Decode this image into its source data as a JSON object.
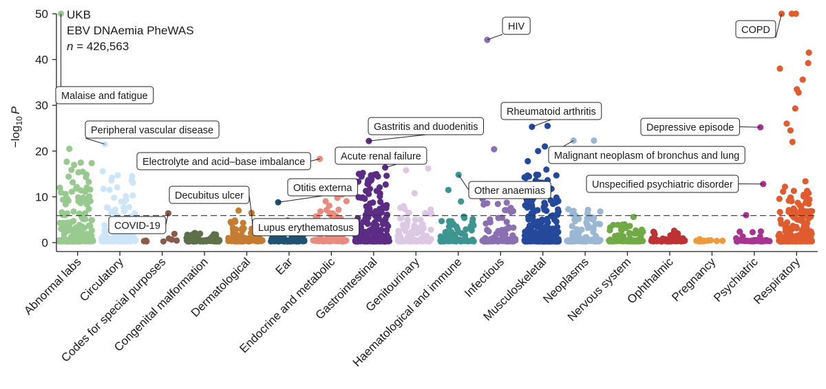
{
  "chart_data": {
    "type": "scatter",
    "title": "",
    "info_lines": [
      "UKB",
      "EBV DNAemia PheWAS"
    ],
    "n_label": {
      "italic": "n",
      "rest": " = 426,563"
    },
    "ylabel": {
      "prefix": "−log",
      "sub": "10",
      "var": "P"
    },
    "xlabel": "",
    "ylim": [
      0,
      50
    ],
    "yticks": [
      0,
      10,
      20,
      30,
      40,
      50
    ],
    "threshold": 5.9,
    "categories": [
      {
        "name": "Abnormal labs",
        "color": "#98c98e",
        "count": 190,
        "max_bg": 18,
        "highlights": [
          [
            0.7,
            9.8
          ],
          [
            0.3,
            20.5
          ],
          [
            0.05,
            50
          ]
        ]
      },
      {
        "name": "Circulatory",
        "color": "#cde6f7",
        "count": 170,
        "max_bg": 16,
        "highlights": [
          [
            0.1,
            21.5
          ],
          [
            0.9,
            14.5
          ]
        ]
      },
      {
        "name": "Codes for special purposes",
        "color": "#8a5a4c",
        "count": 7,
        "max_bg": 1.2,
        "highlights": [
          [
            0.72,
            6.4
          ],
          [
            0.9,
            1.9
          ]
        ]
      },
      {
        "name": "Congenital malformation",
        "color": "#5d7049",
        "count": 90,
        "max_bg": 2.2,
        "highlights": []
      },
      {
        "name": "Dermatological",
        "color": "#c57c32",
        "count": 90,
        "max_bg": 5,
        "highlights": [
          [
            0.68,
            6.5
          ],
          [
            0.3,
            7.0
          ]
        ]
      },
      {
        "name": "Ear",
        "color": "#1d5272",
        "count": 90,
        "max_bg": 3.2,
        "highlights": [
          [
            0.22,
            8.8
          ],
          [
            0.5,
            4.8
          ]
        ]
      },
      {
        "name": "Endocrine and metabolic",
        "color": "#ea8b7f",
        "count": 100,
        "max_bg": 10,
        "highlights": [
          [
            0.22,
            6.8
          ],
          [
            0.85,
            10.5
          ],
          [
            0.45,
            11.5
          ],
          [
            0.2,
            18.3
          ]
        ]
      },
      {
        "name": "Gastrointestinal",
        "color": "#5a2c84",
        "count": 280,
        "max_bg": 15.5,
        "highlights": [
          [
            0.4,
            22.2
          ],
          [
            0.88,
            16.4
          ]
        ]
      },
      {
        "name": "Genitourinary",
        "color": "#dcc8e3",
        "count": 100,
        "max_bg": 9,
        "highlights": [
          [
            0.25,
            15.8
          ],
          [
            0.9,
            16.2
          ],
          [
            0.5,
            10.8
          ]
        ]
      },
      {
        "name": "Haematological and immune",
        "color": "#3c9590",
        "count": 90,
        "max_bg": 6,
        "highlights": [
          [
            0.55,
            14.8
          ],
          [
            0.25,
            11.5
          ],
          [
            0.62,
            9.0
          ]
        ]
      },
      {
        "name": "Infectious",
        "color": "#8a70b0",
        "count": 110,
        "max_bg": 12,
        "highlights": [
          [
            0.15,
            44.3
          ],
          [
            0.35,
            20.4
          ]
        ]
      },
      {
        "name": "Musculoskeletal",
        "color": "#24499a",
        "count": 330,
        "max_bg": 16,
        "highlights": [
          [
            0.22,
            25.3
          ],
          [
            0.68,
            25.5
          ],
          [
            0.6,
            21.0
          ],
          [
            0.1,
            17.8
          ],
          [
            0.4,
            20.0
          ]
        ]
      },
      {
        "name": "Neoplasms",
        "color": "#9ab7d3",
        "count": 130,
        "max_bg": 8,
        "highlights": [
          [
            0.2,
            22.3
          ],
          [
            0.8,
            22.3
          ]
        ]
      },
      {
        "name": "Nervous system",
        "color": "#6faa45",
        "count": 80,
        "max_bg": 4,
        "highlights": [
          [
            0.72,
            5.6
          ]
        ]
      },
      {
        "name": "Ophthalmic",
        "color": "#be3234",
        "count": 80,
        "max_bg": 2.8,
        "highlights": []
      },
      {
        "name": "Pregnancy",
        "color": "#ee9a3b",
        "count": 11,
        "max_bg": 1.2,
        "highlights": []
      },
      {
        "name": "Psychiatric",
        "color": "#a83491",
        "count": 40,
        "max_bg": 2.5,
        "highlights": [
          [
            0.3,
            6.0
          ],
          [
            0.72,
            25.2
          ],
          [
            0.8,
            12.8
          ]
        ]
      },
      {
        "name": "Respiratory",
        "color": "#e05c2e",
        "count": 260,
        "max_bg": 12,
        "highlights": [
          [
            0.1,
            50
          ],
          [
            0.4,
            50
          ],
          [
            0.52,
            50
          ],
          [
            0.05,
            38
          ],
          [
            0.9,
            41.5
          ],
          [
            0.88,
            39.2
          ],
          [
            0.55,
            33.5
          ],
          [
            0.72,
            35.6
          ],
          [
            0.5,
            29.3
          ],
          [
            0.25,
            26
          ],
          [
            0.36,
            24.5
          ],
          [
            0.42,
            22
          ],
          [
            0.6,
            32.8
          ],
          [
            0.8,
            13.4
          ],
          [
            0.2,
            12.2
          ]
        ]
      }
    ],
    "annotations": [
      {
        "label": "Malaise and fatigue",
        "category": "Abnormal labs",
        "value": 50
      },
      {
        "label": "Peripheral vascular disease",
        "category": "Circulatory",
        "value": 21.5
      },
      {
        "label": "Electrolyte and acid–base imbalance",
        "category": "Endocrine and metabolic",
        "value": 18.3
      },
      {
        "label": "Decubitus ulcer",
        "category": "Dermatological",
        "value": 6.5
      },
      {
        "label": "COVID-19",
        "category": "Codes for special purposes",
        "value": 6.4
      },
      {
        "label": "Lupus erythematosus",
        "category": "Dermatological",
        "value": 6.5
      },
      {
        "label": "Otitis externa",
        "category": "Ear",
        "value": 8.8
      },
      {
        "label": "Acute renal failure",
        "category": "Gastrointestinal",
        "value": 16.4
      },
      {
        "label": "Gastritis and duodenitis",
        "category": "Gastrointestinal",
        "value": 22.2
      },
      {
        "label": "HIV",
        "category": "Infectious",
        "value": 44.3
      },
      {
        "label": "Other anaemias",
        "category": "Haematological and immune",
        "value": 14.8
      },
      {
        "label": "Rheumatoid arthritis",
        "category": "Musculoskeletal",
        "value": 25.3
      },
      {
        "label": "Malignant neoplasm of bronchus and lung",
        "category": "Neoplasms",
        "value": 22.3
      },
      {
        "label": "Depressive episode",
        "category": "Psychiatric",
        "value": 25.2
      },
      {
        "label": "Unspecified psychiatric disorder",
        "category": "Psychiatric",
        "value": 12.8
      },
      {
        "label": "COPD",
        "category": "Respiratory",
        "value": 50
      }
    ]
  }
}
